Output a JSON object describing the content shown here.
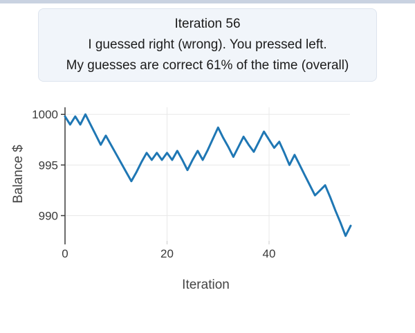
{
  "page": {
    "top_strip_color": "#c9d2e1",
    "background_color": "#ffffff"
  },
  "message_box": {
    "background_color": "#f1f5fa",
    "border_color": "#dde4ee",
    "lines": [
      "Iteration 56",
      "I guessed right (wrong). You pressed left.",
      "My guesses are correct 61% of the time (overall)"
    ]
  },
  "chart_data": {
    "type": "line",
    "title": "",
    "xlabel": "Iteration",
    "ylabel": "Balance $",
    "x_ticks": [
      0,
      20,
      40
    ],
    "y_ticks": [
      1000,
      995,
      990
    ],
    "xlim": [
      0,
      56
    ],
    "ylim": [
      987.5,
      1000.7
    ],
    "grid": true,
    "legend": "none",
    "line_color": "#1f77b4",
    "grid_color": "#e8e8e8",
    "axis_color": "#3a3a3a",
    "tick_label_color": "#3a3a3a",
    "axis_label_color": "#444444",
    "series": [
      {
        "name": "balance",
        "x_start": 0,
        "x_step": 1,
        "values": [
          999.8,
          999,
          999.8,
          999,
          1000,
          999,
          998,
          997,
          997.9,
          997,
          996.1,
          995.2,
          994.3,
          993.4,
          994.3,
          995.3,
          996.2,
          995.5,
          996.2,
          995.5,
          996.2,
          995.5,
          996.4,
          995.5,
          994.5,
          995.5,
          996.4,
          995.5,
          996.5,
          997.6,
          998.7,
          997.7,
          996.8,
          995.8,
          996.8,
          997.8,
          997,
          996.3,
          997.3,
          998.3,
          997.5,
          996.7,
          997.3,
          996.2,
          995,
          996,
          995,
          994,
          993,
          992,
          992.5,
          993,
          991.8,
          990.5,
          989.3,
          988,
          989
        ]
      }
    ]
  }
}
